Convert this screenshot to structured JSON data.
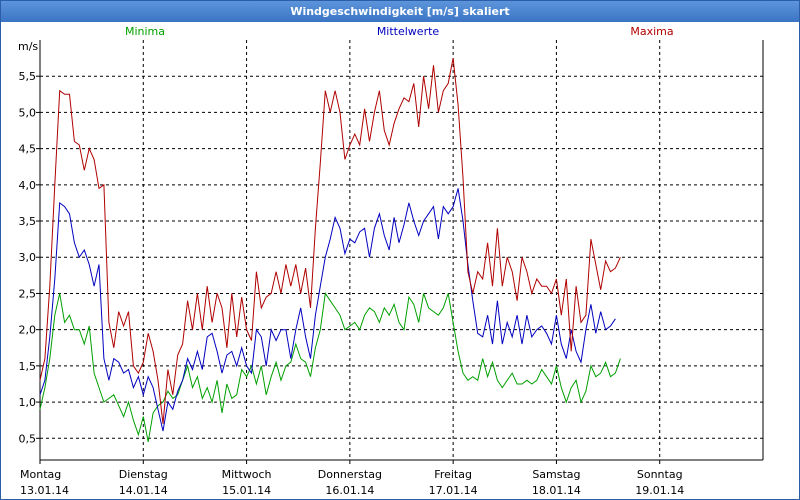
{
  "window": {
    "title": "Windgeschwindigkeit [m/s] skaliert"
  },
  "chart_data": {
    "type": "line",
    "title": "Windgeschwindigkeit [m/s] skaliert",
    "ylabel": "m/s",
    "ylim": [
      0.2,
      6.0
    ],
    "xlim": [
      0,
      7
    ],
    "yticks": [
      "0,5",
      "1,0",
      "1,5",
      "2,0",
      "2,5",
      "3,0",
      "3,5",
      "4,0",
      "4,5",
      "5,0",
      "5,5"
    ],
    "xticks": [
      {
        "day": "Montag",
        "date": "13.01.14"
      },
      {
        "day": "Dienstag",
        "date": "14.01.14"
      },
      {
        "day": "Mittwoch",
        "date": "15.01.14"
      },
      {
        "day": "Donnerstag",
        "date": "16.01.14"
      },
      {
        "day": "Freitag",
        "date": "17.01.14"
      },
      {
        "day": "Samstag",
        "date": "18.01.14"
      },
      {
        "day": "Sonntag",
        "date": "19.01.14"
      }
    ],
    "grid": true,
    "legend_position": "top",
    "series": [
      {
        "name": "Minima",
        "color": "#00a000",
        "values": [
          0.9,
          1.2,
          1.6,
          2.2,
          2.5,
          2.1,
          2.2,
          2.0,
          2.0,
          1.8,
          2.05,
          1.4,
          1.2,
          1.0,
          1.05,
          1.1,
          0.95,
          0.8,
          1.0,
          0.75,
          0.55,
          0.8,
          0.45,
          0.85,
          0.95,
          1.0,
          1.15,
          1.05,
          1.1,
          1.3,
          1.5,
          1.2,
          1.35,
          1.05,
          1.2,
          1.0,
          1.3,
          0.85,
          1.25,
          1.05,
          1.1,
          1.45,
          1.35,
          1.5,
          1.25,
          1.5,
          1.1,
          1.35,
          1.55,
          1.3,
          1.5,
          1.55,
          1.8,
          1.6,
          1.55,
          1.35,
          1.75,
          2.0,
          2.5,
          2.4,
          2.3,
          2.2,
          2.0,
          2.05,
          2.1,
          2.0,
          2.2,
          2.3,
          2.25,
          2.1,
          2.3,
          2.2,
          2.35,
          2.1,
          2.0,
          2.45,
          2.35,
          2.1,
          2.5,
          2.3,
          2.25,
          2.2,
          2.3,
          2.5,
          2.1,
          1.7,
          1.4,
          1.3,
          1.35,
          1.3,
          1.6,
          1.35,
          1.55,
          1.3,
          1.2,
          1.3,
          1.4,
          1.25,
          1.25,
          1.3,
          1.25,
          1.3,
          1.45,
          1.35,
          1.25,
          1.5,
          1.2,
          1.0,
          1.2,
          1.3,
          1.0,
          1.15,
          1.5,
          1.35,
          1.4,
          1.55,
          1.35,
          1.4,
          1.6
        ]
      },
      {
        "name": "Mittelwerte",
        "color": "#0000c0",
        "values": [
          1.1,
          1.3,
          1.9,
          2.7,
          3.75,
          3.7,
          3.6,
          3.2,
          3.0,
          3.1,
          2.9,
          2.6,
          2.9,
          1.6,
          1.3,
          1.6,
          1.55,
          1.4,
          1.45,
          1.2,
          1.35,
          1.1,
          1.35,
          1.2,
          0.9,
          0.6,
          1.0,
          0.9,
          1.15,
          1.3,
          1.6,
          1.45,
          1.7,
          1.45,
          1.9,
          1.95,
          1.7,
          1.4,
          1.65,
          1.7,
          1.5,
          1.75,
          1.5,
          1.4,
          2.0,
          1.9,
          1.5,
          2.0,
          1.85,
          2.0,
          2.0,
          1.6,
          2.0,
          2.3,
          1.9,
          1.6,
          2.2,
          2.6,
          3.0,
          3.25,
          3.55,
          3.4,
          3.05,
          3.25,
          3.2,
          3.35,
          3.4,
          3.0,
          3.4,
          3.6,
          3.3,
          3.1,
          3.55,
          3.2,
          3.45,
          3.75,
          3.5,
          3.3,
          3.5,
          3.6,
          3.7,
          3.25,
          3.7,
          3.6,
          3.7,
          3.95,
          3.5,
          2.9,
          2.4,
          1.95,
          1.9,
          2.2,
          1.8,
          2.4,
          1.8,
          2.1,
          1.9,
          2.2,
          1.8,
          2.2,
          1.9,
          2.0,
          2.05,
          1.95,
          1.8,
          2.2,
          1.8,
          1.6,
          2.0,
          1.7,
          1.55,
          2.0,
          2.35,
          1.95,
          2.25,
          2.0,
          2.05,
          2.15
        ]
      },
      {
        "name": "Maxima",
        "color": "#b00000",
        "values": [
          1.3,
          1.6,
          2.6,
          4.0,
          5.3,
          5.25,
          5.25,
          4.6,
          4.55,
          4.2,
          4.5,
          4.35,
          3.95,
          4.0,
          2.1,
          1.75,
          2.25,
          2.05,
          2.25,
          1.5,
          1.4,
          1.55,
          1.95,
          1.7,
          1.3,
          0.7,
          1.45,
          1.1,
          1.65,
          1.8,
          2.4,
          2.0,
          2.5,
          2.0,
          2.6,
          2.1,
          2.5,
          2.3,
          1.75,
          2.5,
          1.9,
          2.45,
          2.0,
          1.85,
          2.8,
          2.3,
          2.45,
          2.5,
          2.8,
          2.5,
          2.9,
          2.6,
          2.9,
          2.5,
          2.85,
          2.3,
          3.4,
          4.3,
          5.3,
          5.0,
          5.3,
          5.0,
          4.35,
          4.55,
          4.7,
          4.55,
          5.05,
          4.6,
          5.0,
          5.3,
          4.75,
          4.55,
          4.85,
          5.05,
          5.2,
          5.15,
          5.4,
          4.8,
          5.5,
          5.05,
          5.65,
          5.0,
          5.3,
          5.4,
          5.75,
          5.1,
          4.1,
          2.8,
          2.5,
          2.8,
          2.7,
          3.2,
          2.6,
          3.4,
          2.6,
          3.0,
          2.8,
          2.4,
          3.0,
          2.8,
          2.5,
          2.7,
          2.6,
          2.6,
          2.5,
          2.7,
          2.2,
          2.7,
          1.7,
          2.6,
          2.1,
          2.2,
          3.25,
          2.9,
          2.55,
          2.95,
          2.8,
          2.85,
          3.0
        ]
      }
    ]
  }
}
